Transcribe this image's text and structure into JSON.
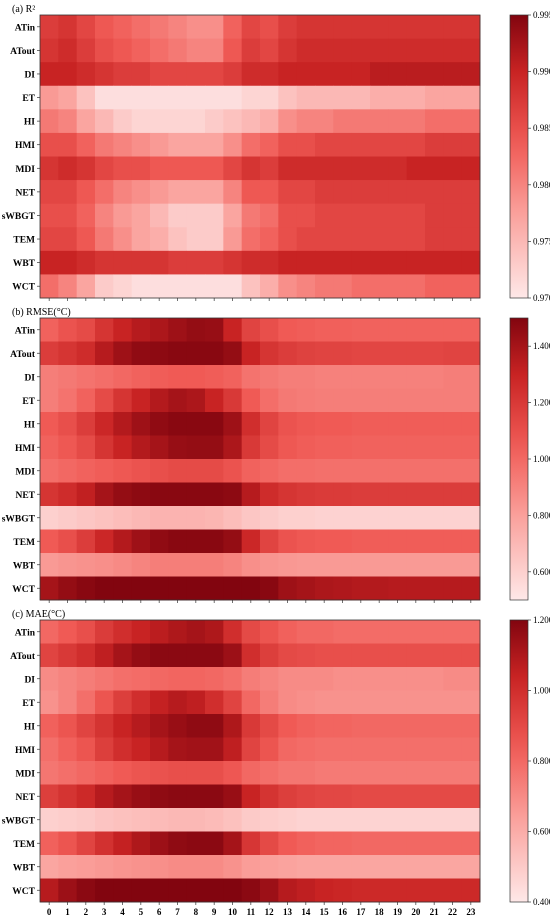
{
  "chart_data": [
    {
      "type": "heatmap",
      "title": "(a) R²",
      "colormap": "reds",
      "rows": [
        "ATin",
        "ATout",
        "DI",
        "ET",
        "HI",
        "HMI",
        "MDI",
        "NET",
        "sWBGT",
        "TEM",
        "WBT",
        "WCT"
      ],
      "columns": [
        "0",
        "1",
        "2",
        "3",
        "4",
        "5",
        "6",
        "7",
        "8",
        "9",
        "10",
        "11",
        "12",
        "13",
        "14",
        "15",
        "16",
        "17",
        "18",
        "19",
        "20",
        "21",
        "22",
        "23"
      ],
      "zlim": [
        0.97,
        0.995
      ],
      "colorbar_ticks": [
        "0.970",
        "0.975",
        "0.980",
        "0.985",
        "0.990",
        "0.995"
      ],
      "values": [
        [
          0.987,
          0.988,
          0.986,
          0.984,
          0.983,
          0.982,
          0.981,
          0.98,
          0.979,
          0.979,
          0.983,
          0.986,
          0.985,
          0.987,
          0.988,
          0.988,
          0.988,
          0.988,
          0.988,
          0.988,
          0.988,
          0.988,
          0.988,
          0.988
        ],
        [
          0.988,
          0.989,
          0.987,
          0.985,
          0.984,
          0.983,
          0.982,
          0.981,
          0.98,
          0.98,
          0.984,
          0.987,
          0.986,
          0.988,
          0.989,
          0.989,
          0.989,
          0.989,
          0.989,
          0.989,
          0.989,
          0.989,
          0.989,
          0.989
        ],
        [
          0.99,
          0.99,
          0.989,
          0.988,
          0.987,
          0.987,
          0.986,
          0.986,
          0.986,
          0.986,
          0.987,
          0.989,
          0.989,
          0.99,
          0.99,
          0.99,
          0.99,
          0.99,
          0.991,
          0.991,
          0.991,
          0.991,
          0.991,
          0.991
        ],
        [
          0.978,
          0.977,
          0.974,
          0.971,
          0.971,
          0.971,
          0.971,
          0.971,
          0.971,
          0.971,
          0.971,
          0.972,
          0.972,
          0.974,
          0.975,
          0.975,
          0.975,
          0.975,
          0.976,
          0.976,
          0.976,
          0.977,
          0.977,
          0.977
        ],
        [
          0.981,
          0.98,
          0.977,
          0.975,
          0.973,
          0.972,
          0.972,
          0.972,
          0.972,
          0.973,
          0.974,
          0.975,
          0.976,
          0.979,
          0.98,
          0.98,
          0.981,
          0.981,
          0.981,
          0.981,
          0.981,
          0.982,
          0.982,
          0.982
        ],
        [
          0.985,
          0.985,
          0.983,
          0.981,
          0.98,
          0.979,
          0.978,
          0.977,
          0.977,
          0.977,
          0.979,
          0.982,
          0.983,
          0.985,
          0.985,
          0.986,
          0.986,
          0.986,
          0.986,
          0.986,
          0.986,
          0.987,
          0.987,
          0.987
        ],
        [
          0.988,
          0.989,
          0.988,
          0.986,
          0.985,
          0.985,
          0.984,
          0.984,
          0.984,
          0.984,
          0.986,
          0.988,
          0.987,
          0.989,
          0.989,
          0.989,
          0.989,
          0.989,
          0.989,
          0.989,
          0.99,
          0.99,
          0.99,
          0.99
        ],
        [
          0.986,
          0.986,
          0.984,
          0.982,
          0.98,
          0.979,
          0.978,
          0.977,
          0.977,
          0.977,
          0.98,
          0.984,
          0.984,
          0.986,
          0.986,
          0.987,
          0.987,
          0.987,
          0.987,
          0.987,
          0.987,
          0.987,
          0.987,
          0.987
        ],
        [
          0.985,
          0.985,
          0.983,
          0.98,
          0.978,
          0.977,
          0.975,
          0.973,
          0.973,
          0.973,
          0.977,
          0.981,
          0.982,
          0.985,
          0.985,
          0.986,
          0.986,
          0.986,
          0.986,
          0.986,
          0.986,
          0.987,
          0.987,
          0.987
        ],
        [
          0.986,
          0.986,
          0.984,
          0.981,
          0.979,
          0.977,
          0.976,
          0.974,
          0.973,
          0.973,
          0.978,
          0.982,
          0.983,
          0.985,
          0.986,
          0.986,
          0.986,
          0.986,
          0.986,
          0.986,
          0.986,
          0.987,
          0.987,
          0.987
        ],
        [
          0.99,
          0.99,
          0.989,
          0.988,
          0.988,
          0.988,
          0.988,
          0.987,
          0.987,
          0.987,
          0.988,
          0.989,
          0.989,
          0.99,
          0.99,
          0.99,
          0.99,
          0.99,
          0.99,
          0.99,
          0.99,
          0.99,
          0.99,
          0.99
        ],
        [
          0.982,
          0.98,
          0.977,
          0.973,
          0.972,
          0.971,
          0.971,
          0.971,
          0.971,
          0.971,
          0.971,
          0.974,
          0.976,
          0.979,
          0.98,
          0.981,
          0.981,
          0.982,
          0.982,
          0.982,
          0.982,
          0.983,
          0.983,
          0.983
        ]
      ]
    },
    {
      "type": "heatmap",
      "title": "(b) RMSE(°C)",
      "colormap": "reds",
      "rows": [
        "ATin",
        "ATout",
        "DI",
        "ET",
        "HI",
        "HMI",
        "MDI",
        "NET",
        "sWBGT",
        "TEM",
        "WBT",
        "WCT"
      ],
      "columns": [
        "0",
        "1",
        "2",
        "3",
        "4",
        "5",
        "6",
        "7",
        "8",
        "9",
        "10",
        "11",
        "12",
        "13",
        "14",
        "15",
        "16",
        "17",
        "18",
        "19",
        "20",
        "21",
        "22",
        "23"
      ],
      "zlim": [
        0.5,
        1.5
      ],
      "colorbar_ticks": [
        "0.600",
        "0.800",
        "1.000",
        "1.200",
        "1.400"
      ],
      "values": [
        [
          1.02,
          1.08,
          1.12,
          1.22,
          1.3,
          1.35,
          1.38,
          1.42,
          1.45,
          1.44,
          1.3,
          1.15,
          1.1,
          1.05,
          1.04,
          1.03,
          1.03,
          1.02,
          1.02,
          1.02,
          1.02,
          1.02,
          1.02,
          1.02
        ],
        [
          1.18,
          1.22,
          1.26,
          1.35,
          1.42,
          1.46,
          1.47,
          1.48,
          1.48,
          1.48,
          1.45,
          1.3,
          1.22,
          1.18,
          1.16,
          1.15,
          1.15,
          1.14,
          1.14,
          1.14,
          1.14,
          1.14,
          1.15,
          1.15
        ],
        [
          0.92,
          0.94,
          0.96,
          0.98,
          1.0,
          1.02,
          1.04,
          1.05,
          1.05,
          1.04,
          1.02,
          0.96,
          0.94,
          0.92,
          0.92,
          0.91,
          0.91,
          0.91,
          0.91,
          0.91,
          0.91,
          0.91,
          0.92,
          0.92
        ],
        [
          0.92,
          0.96,
          1.02,
          1.12,
          1.22,
          1.3,
          1.36,
          1.4,
          1.38,
          1.3,
          1.2,
          1.05,
          0.98,
          0.94,
          0.93,
          0.92,
          0.92,
          0.92,
          0.92,
          0.92,
          0.92,
          0.92,
          0.92,
          0.92
        ],
        [
          1.05,
          1.1,
          1.18,
          1.28,
          1.36,
          1.42,
          1.46,
          1.48,
          1.48,
          1.48,
          1.42,
          1.25,
          1.15,
          1.08,
          1.06,
          1.05,
          1.05,
          1.04,
          1.04,
          1.04,
          1.04,
          1.04,
          1.04,
          1.04
        ],
        [
          1.02,
          1.06,
          1.12,
          1.22,
          1.3,
          1.36,
          1.4,
          1.44,
          1.45,
          1.45,
          1.38,
          1.2,
          1.12,
          1.06,
          1.04,
          1.03,
          1.03,
          1.02,
          1.02,
          1.02,
          1.02,
          1.02,
          1.02,
          1.02
        ],
        [
          0.98,
          1.0,
          1.02,
          1.04,
          1.06,
          1.08,
          1.1,
          1.12,
          1.12,
          1.12,
          1.08,
          1.02,
          1.0,
          0.98,
          0.98,
          0.97,
          0.97,
          0.97,
          0.97,
          0.97,
          0.97,
          0.97,
          0.97,
          0.97
        ],
        [
          1.22,
          1.26,
          1.32,
          1.4,
          1.45,
          1.47,
          1.48,
          1.48,
          1.48,
          1.48,
          1.47,
          1.35,
          1.26,
          1.22,
          1.2,
          1.19,
          1.19,
          1.18,
          1.18,
          1.18,
          1.18,
          1.18,
          1.18,
          1.18
        ],
        [
          0.6,
          0.62,
          0.64,
          0.66,
          0.68,
          0.7,
          0.72,
          0.72,
          0.72,
          0.71,
          0.68,
          0.64,
          0.62,
          0.6,
          0.6,
          0.59,
          0.59,
          0.59,
          0.59,
          0.59,
          0.59,
          0.59,
          0.59,
          0.59
        ],
        [
          1.05,
          1.1,
          1.18,
          1.28,
          1.36,
          1.42,
          1.46,
          1.48,
          1.48,
          1.48,
          1.45,
          1.28,
          1.15,
          1.08,
          1.06,
          1.05,
          1.05,
          1.04,
          1.04,
          1.04,
          1.04,
          1.04,
          1.04,
          1.04
        ],
        [
          0.82,
          0.84,
          0.85,
          0.86,
          0.88,
          0.9,
          0.92,
          0.92,
          0.92,
          0.92,
          0.9,
          0.86,
          0.84,
          0.83,
          0.82,
          0.82,
          0.82,
          0.82,
          0.82,
          0.82,
          0.82,
          0.82,
          0.82,
          0.82
        ],
        [
          1.4,
          1.45,
          1.48,
          1.5,
          1.5,
          1.5,
          1.5,
          1.5,
          1.5,
          1.5,
          1.5,
          1.5,
          1.48,
          1.42,
          1.4,
          1.38,
          1.37,
          1.36,
          1.36,
          1.35,
          1.35,
          1.35,
          1.35,
          1.35
        ]
      ]
    },
    {
      "type": "heatmap",
      "title": "(c) MAE(°C)",
      "colormap": "reds",
      "rows": [
        "ATin",
        "ATout",
        "DI",
        "ET",
        "HI",
        "HMI",
        "MDI",
        "NET",
        "sWBGT",
        "TEM",
        "WBT",
        "WCT"
      ],
      "columns": [
        "0",
        "1",
        "2",
        "3",
        "4",
        "5",
        "6",
        "7",
        "8",
        "9",
        "10",
        "11",
        "12",
        "13",
        "14",
        "15",
        "16",
        "17",
        "18",
        "19",
        "20",
        "21",
        "22",
        "23"
      ],
      "zlim": [
        0.4,
        1.2
      ],
      "colorbar_ticks": [
        "0.400",
        "0.600",
        "0.800",
        "1.000",
        "1.200"
      ],
      "values": [
        [
          0.8,
          0.84,
          0.88,
          0.95,
          1.0,
          1.04,
          1.07,
          1.1,
          1.12,
          1.1,
          1.0,
          0.9,
          0.86,
          0.82,
          0.8,
          0.8,
          0.79,
          0.79,
          0.79,
          0.79,
          0.79,
          0.79,
          0.79,
          0.79
        ],
        [
          0.92,
          0.96,
          1.0,
          1.06,
          1.12,
          1.16,
          1.18,
          1.18,
          1.18,
          1.18,
          1.14,
          1.0,
          0.94,
          0.9,
          0.89,
          0.88,
          0.88,
          0.88,
          0.88,
          0.88,
          0.88,
          0.88,
          0.88,
          0.88
        ],
        [
          0.7,
          0.72,
          0.74,
          0.76,
          0.78,
          0.79,
          0.8,
          0.81,
          0.81,
          0.8,
          0.78,
          0.74,
          0.72,
          0.7,
          0.7,
          0.7,
          0.69,
          0.69,
          0.69,
          0.69,
          0.69,
          0.69,
          0.7,
          0.7
        ],
        [
          0.68,
          0.72,
          0.78,
          0.86,
          0.94,
          1.0,
          1.05,
          1.08,
          1.06,
          1.0,
          0.92,
          0.8,
          0.74,
          0.7,
          0.69,
          0.68,
          0.68,
          0.68,
          0.68,
          0.68,
          0.68,
          0.68,
          0.68,
          0.68
        ],
        [
          0.82,
          0.86,
          0.92,
          0.98,
          1.04,
          1.08,
          1.12,
          1.15,
          1.17,
          1.17,
          1.1,
          0.96,
          0.9,
          0.84,
          0.82,
          0.81,
          0.81,
          0.8,
          0.8,
          0.8,
          0.8,
          0.8,
          0.8,
          0.8
        ],
        [
          0.78,
          0.82,
          0.86,
          0.94,
          1.0,
          1.04,
          1.08,
          1.12,
          1.13,
          1.13,
          1.06,
          0.92,
          0.86,
          0.8,
          0.79,
          0.78,
          0.78,
          0.78,
          0.78,
          0.78,
          0.78,
          0.78,
          0.78,
          0.78
        ],
        [
          0.76,
          0.78,
          0.8,
          0.82,
          0.84,
          0.86,
          0.87,
          0.88,
          0.88,
          0.88,
          0.85,
          0.8,
          0.78,
          0.76,
          0.76,
          0.75,
          0.75,
          0.75,
          0.75,
          0.75,
          0.75,
          0.75,
          0.75,
          0.75
        ],
        [
          0.94,
          0.98,
          1.02,
          1.08,
          1.12,
          1.15,
          1.17,
          1.18,
          1.18,
          1.18,
          1.15,
          1.04,
          0.98,
          0.94,
          0.92,
          0.91,
          0.91,
          0.9,
          0.9,
          0.9,
          0.9,
          0.9,
          0.9,
          0.9
        ],
        [
          0.48,
          0.49,
          0.5,
          0.52,
          0.53,
          0.54,
          0.55,
          0.56,
          0.56,
          0.55,
          0.53,
          0.5,
          0.49,
          0.48,
          0.47,
          0.47,
          0.47,
          0.47,
          0.47,
          0.47,
          0.47,
          0.47,
          0.47,
          0.47
        ],
        [
          0.82,
          0.86,
          0.92,
          0.99,
          1.05,
          1.1,
          1.14,
          1.17,
          1.18,
          1.18,
          1.12,
          0.97,
          0.9,
          0.84,
          0.82,
          0.81,
          0.81,
          0.8,
          0.8,
          0.8,
          0.8,
          0.8,
          0.8,
          0.8
        ],
        [
          0.62,
          0.64,
          0.65,
          0.66,
          0.67,
          0.68,
          0.69,
          0.7,
          0.7,
          0.7,
          0.68,
          0.65,
          0.64,
          0.63,
          0.62,
          0.62,
          0.62,
          0.62,
          0.62,
          0.62,
          0.62,
          0.62,
          0.62,
          0.62
        ],
        [
          1.08,
          1.14,
          1.18,
          1.2,
          1.2,
          1.2,
          1.2,
          1.2,
          1.2,
          1.2,
          1.2,
          1.18,
          1.14,
          1.08,
          1.06,
          1.04,
          1.03,
          1.02,
          1.02,
          1.02,
          1.02,
          1.02,
          1.02,
          1.02
        ]
      ]
    }
  ]
}
